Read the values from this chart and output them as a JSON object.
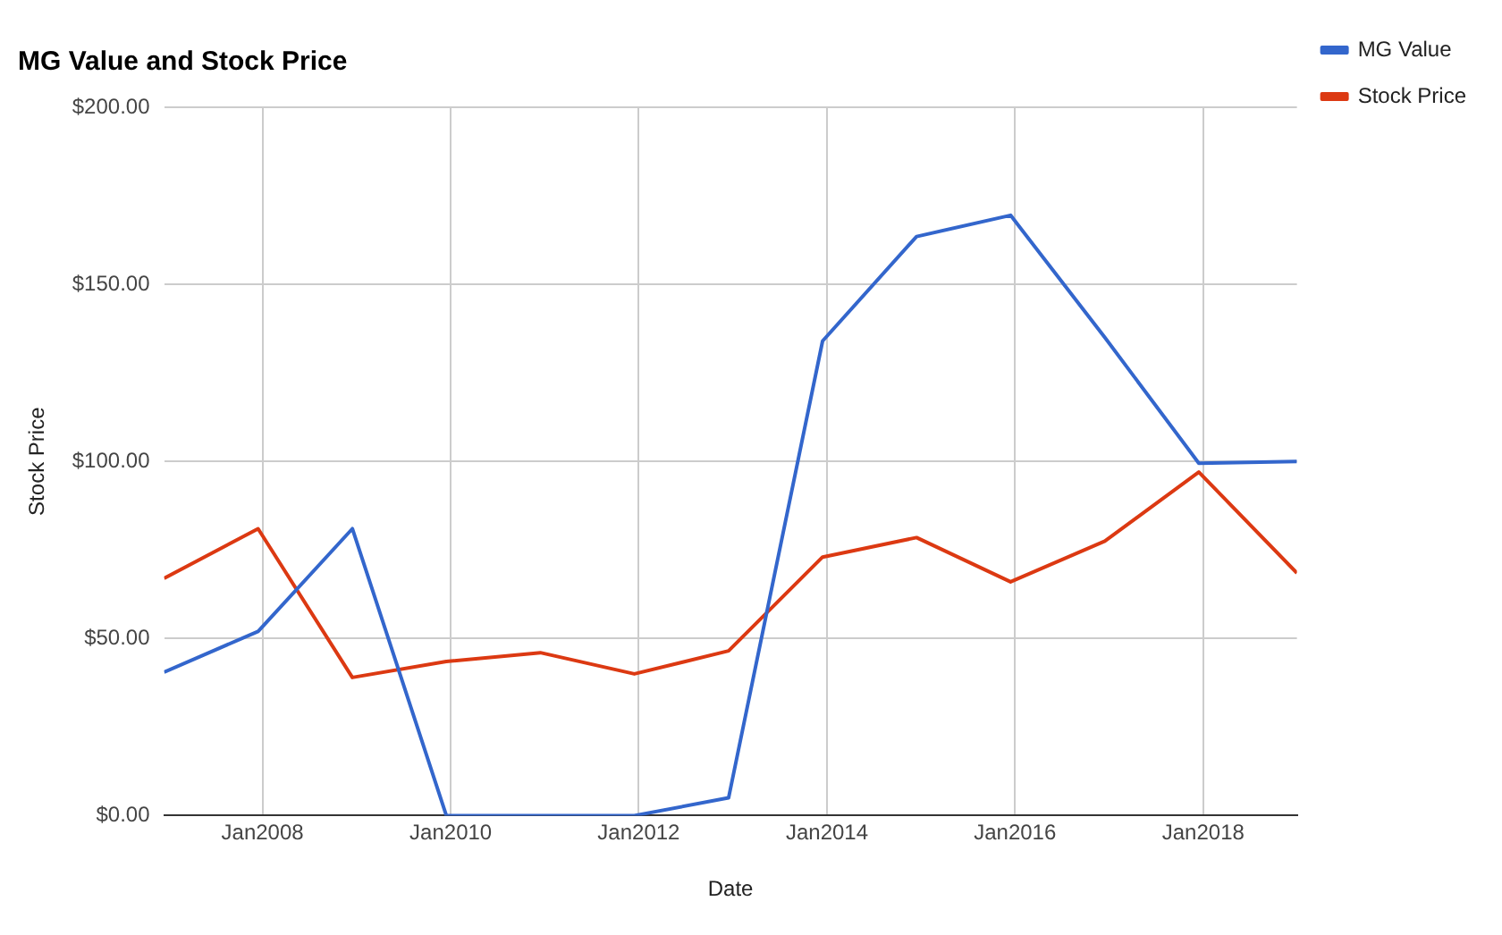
{
  "chart_data": {
    "type": "line",
    "title": "MG Value and Stock Price",
    "xlabel": "Date",
    "ylabel": "Stock Price",
    "x": [
      "2006-12-15",
      "2007-12-15",
      "2008-12-15",
      "2009-12-15",
      "2010-12-15",
      "2011-12-15",
      "2012-12-15",
      "2013-12-15",
      "2014-12-15",
      "2015-12-15",
      "2016-12-15",
      "2017-12-15",
      "2018-12-31"
    ],
    "series": [
      {
        "name": "MG Value",
        "color": "#3366cc",
        "values": [
          40.5,
          52,
          81,
          0,
          0,
          0,
          5,
          134,
          163.5,
          169.5,
          135,
          99.5,
          100
        ]
      },
      {
        "name": "Stock Price",
        "color": "#dc3912",
        "values": [
          67,
          81,
          39,
          43.5,
          46,
          40,
          46.5,
          73,
          78.5,
          66,
          77.5,
          97,
          68.5
        ]
      }
    ],
    "xlim": [
      "2006-12-15",
      "2018-12-31"
    ],
    "xticks": [
      {
        "value": "2008-01-01",
        "label": "Jan2008"
      },
      {
        "value": "2010-01-01",
        "label": "Jan2010"
      },
      {
        "value": "2012-01-01",
        "label": "Jan2012"
      },
      {
        "value": "2014-01-01",
        "label": "Jan2014"
      },
      {
        "value": "2016-01-01",
        "label": "Jan2016"
      },
      {
        "value": "2018-01-01",
        "label": "Jan2018"
      }
    ],
    "ylim": [
      0,
      200
    ],
    "yticks": [
      {
        "value": 0,
        "label": "$0.00"
      },
      {
        "value": 50,
        "label": "$50.00"
      },
      {
        "value": 100,
        "label": "$100.00"
      },
      {
        "value": 150,
        "label": "$150.00"
      },
      {
        "value": 200,
        "label": "$200.00"
      }
    ],
    "grid": true,
    "legend": "top right",
    "marker": "none",
    "line_style": "solid"
  }
}
